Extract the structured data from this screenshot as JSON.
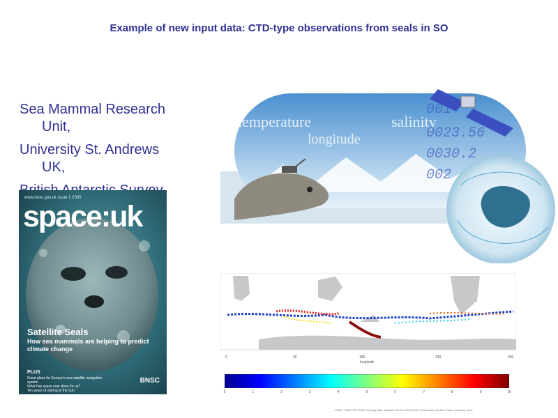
{
  "slide": {
    "title": "Example of new input data: CTD-type observations from seals in SO"
  },
  "bullets": [
    {
      "line1": "Sea Mammal Research",
      "line2": "Unit,"
    },
    {
      "line1": "University St. Andrews",
      "line2": "UK,"
    },
    {
      "line1": "British Antarctic Survey",
      "line2": ""
    }
  ],
  "magazine": {
    "header": "www.bnsc.gov.uk  issue 1  2005",
    "title": "space:uk",
    "feature": "Satellite Seals",
    "feature_sub": "How sea mammals are helping to predict climate change",
    "plus_label": "PLUS",
    "plus_lines": [
      "Great plans for Europe's new satellite navigation system",
      "What has space ever done for us?",
      "Ten years of staring at the Sun"
    ],
    "logo": "BNSC"
  },
  "collage": {
    "words": [
      "temperature",
      "salinity",
      "longitude"
    ],
    "numbers": [
      "001",
      "0023.56",
      "0030.2",
      "002"
    ]
  },
  "track_map": {
    "x_ticks": [
      "0",
      "60",
      "180",
      "240",
      "300"
    ],
    "x_label": "longitude"
  },
  "colorbar": {
    "ticks": [
      "0",
      "1",
      "2",
      "3",
      "4",
      "5",
      "6",
      "7",
      "8",
      "9",
      "10"
    ],
    "colors": [
      "#00008f",
      "#0000ff",
      "#0080ff",
      "#00ffff",
      "#80ff80",
      "#ffff00",
      "#ff8000",
      "#ff0000",
      "#800000"
    ]
  },
  "credit": "SMRU / BAS CTD-SRDL seal tag data, Southern Ocean 2004-2005, temperature profiles colour coded by value"
}
